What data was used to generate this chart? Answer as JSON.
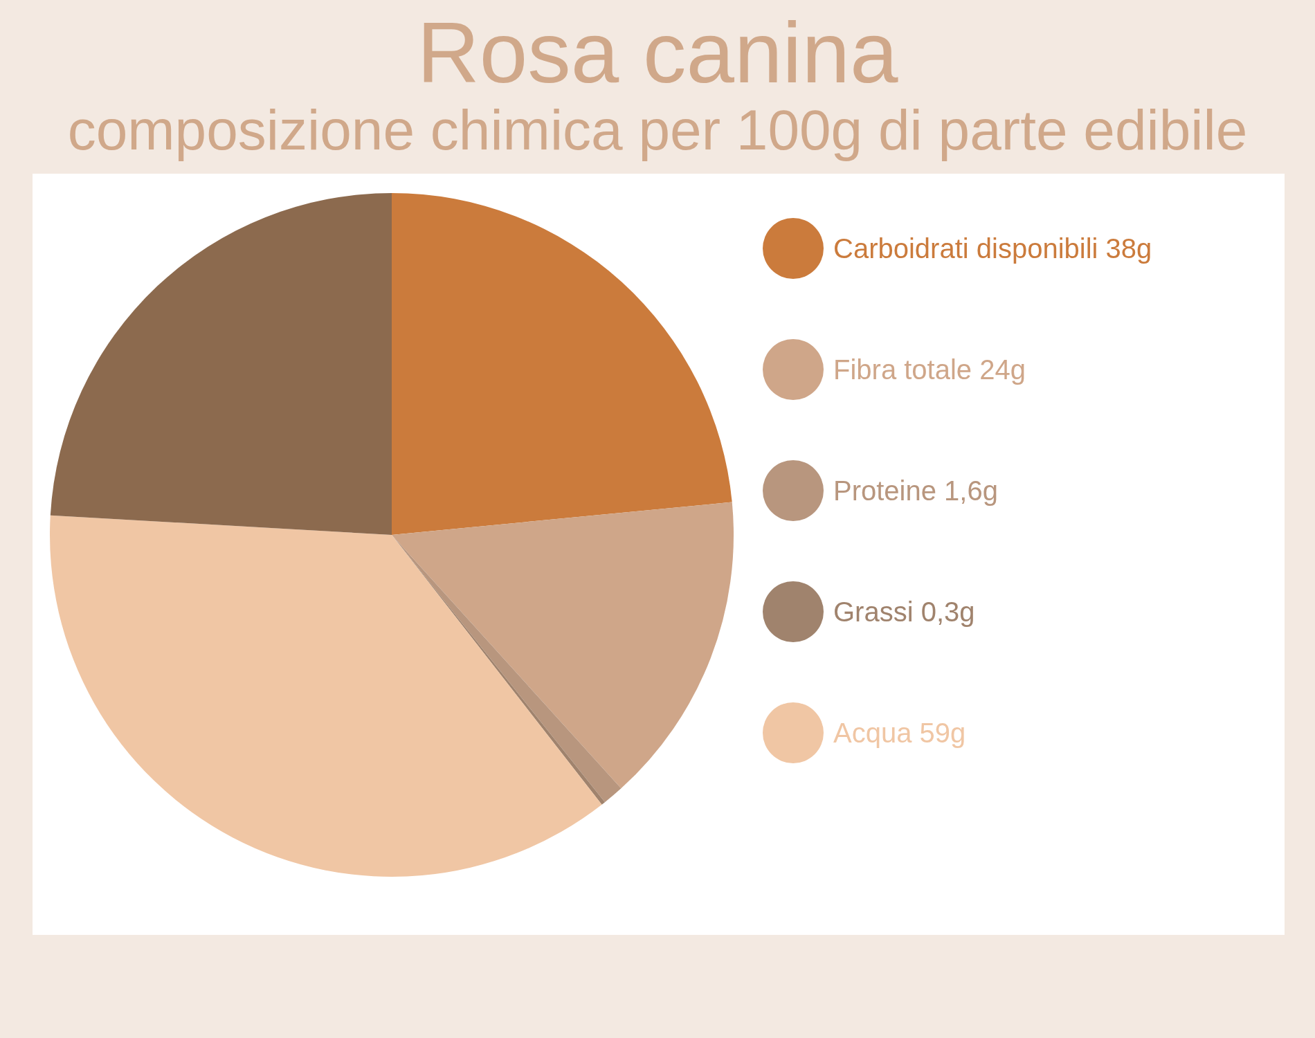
{
  "chart_data": {
    "type": "pie",
    "title": "Rosa canina",
    "subtitle": "composizione chimica per 100g di parte edibile",
    "categories": [
      "Carboidrati disponibili",
      "Fibra totale",
      "Proteine",
      "Grassi",
      "Acqua",
      null
    ],
    "values": [
      38,
      24,
      1.6,
      0.3,
      59,
      39
    ],
    "value_labels": [
      "38g",
      "24g",
      "1,6g",
      "0,3g",
      "59g",
      null
    ],
    "colors": [
      "#cb7b3c",
      "#cfa689",
      "#b8967e",
      "#a0836d",
      "#f0c6a4",
      "#8c6a4e"
    ],
    "legend": "right"
  }
}
